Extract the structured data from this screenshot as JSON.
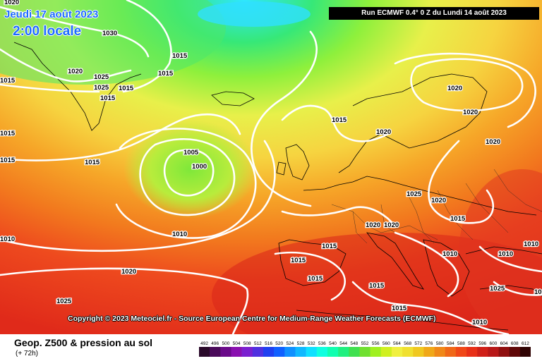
{
  "header": {
    "date": "Jeudi 17 août 2023",
    "local_time": "2:00 locale",
    "run_info": "Run ECMWF 0.4° 0 Z du Lundi 14 août 2023"
  },
  "footer": {
    "title": "Geop. Z500 & pression au sol",
    "subtitle": "(+ 72h)",
    "copyright": "Copyright © 2023 Meteociel.fr - Source European Centre for Medium-Range Weather Forecasts (ECMWF)"
  },
  "colors": {
    "low_geopotential": "#36e8a0",
    "mid_geopotential": "#f3f25a",
    "high_geopotential": "#ef3a1e",
    "isobar": "#ffffff"
  },
  "isobar_labels": [
    "1020",
    "1030",
    "1015",
    "1015",
    "1015",
    "1020",
    "1025",
    "1025",
    "1015",
    "1015",
    "1015",
    "1015",
    "1015",
    "1005",
    "1000",
    "1010",
    "1020",
    "1025",
    "1010",
    "1015",
    "1020",
    "1020",
    "1020",
    "1020",
    "1025",
    "1020",
    "1020",
    "1020",
    "1015",
    "1015",
    "1015",
    "1015",
    "1010",
    "1010",
    "1010",
    "10",
    "1025",
    "1015",
    "1015",
    "1010"
  ],
  "scale": {
    "ticks": [
      "492",
      "496",
      "500",
      "504",
      "508",
      "512",
      "516",
      "520",
      "524",
      "528",
      "532",
      "536",
      "540",
      "544",
      "548",
      "552",
      "556",
      "560",
      "564",
      "568",
      "572",
      "576",
      "580",
      "584",
      "588",
      "592",
      "596",
      "600",
      "604",
      "608",
      "612"
    ],
    "colors": [
      "#2a0a2a",
      "#4a0a5a",
      "#6a0a8a",
      "#8a10b0",
      "#7a20d0",
      "#5030e0",
      "#2040f0",
      "#1060ff",
      "#1090ff",
      "#10b8ff",
      "#10e0ff",
      "#10ffe0",
      "#10ffb0",
      "#20f080",
      "#40e050",
      "#70e030",
      "#a0f020",
      "#d0f020",
      "#f0f040",
      "#f0e030",
      "#f0c820",
      "#f0a818",
      "#f08818",
      "#f06818",
      "#f04818",
      "#e83018",
      "#d02018",
      "#b81818",
      "#901010",
      "#600808",
      "#300404"
    ]
  }
}
